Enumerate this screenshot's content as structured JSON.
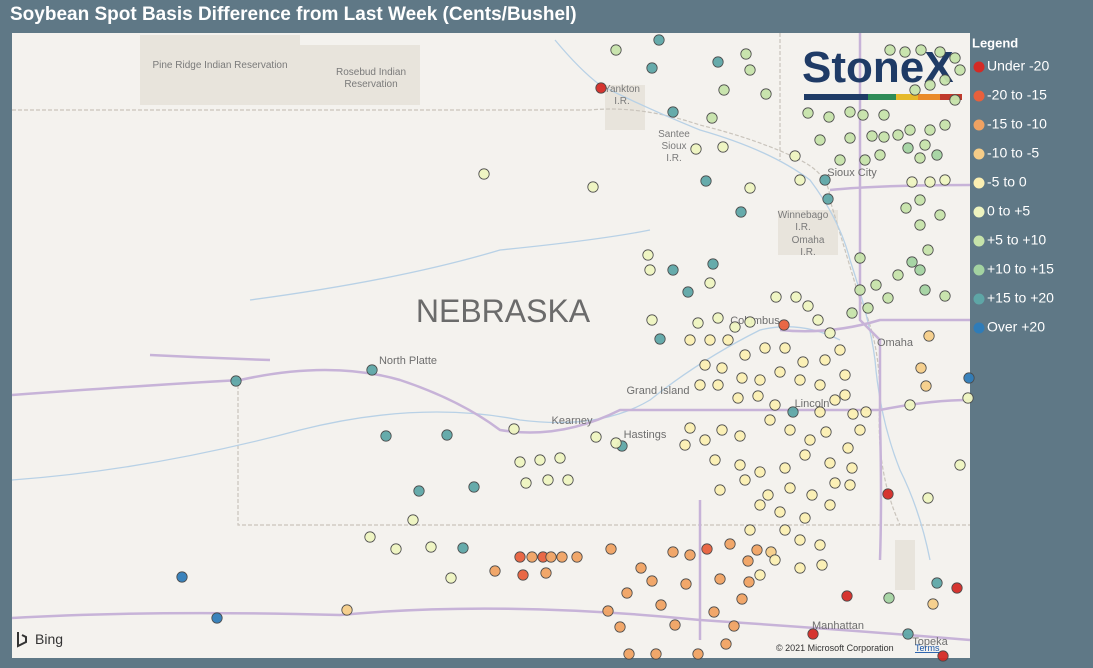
{
  "title": "Soybean Spot Basis Difference from Last Week (Cents/Bushel)",
  "legend": {
    "title": "Legend",
    "items": [
      {
        "label": "Under -20",
        "color": "#d42a25"
      },
      {
        "label": "-20 to -15",
        "color": "#e8603c"
      },
      {
        "label": "-15 to -10",
        "color": "#f0a262"
      },
      {
        "label": "-10 to -5",
        "color": "#f6cd88"
      },
      {
        "label": "-5 to 0",
        "color": "#fbefb2"
      },
      {
        "label": "0 to +5",
        "color": "#eef4c0"
      },
      {
        "label": "+5 to +10",
        "color": "#c6e3aa"
      },
      {
        "label": "+10 to +15",
        "color": "#a3d3a1"
      },
      {
        "label": "+15 to +20",
        "color": "#5ea6a6"
      },
      {
        "label": "Over +20",
        "color": "#2f7cb8"
      }
    ]
  },
  "logo": "StoneX",
  "map_labels": {
    "pine_ridge": "Pine Ridge Indian Reservation",
    "rosebud": [
      "Rosebud Indian",
      "Reservation"
    ],
    "yankton": [
      "Yankton",
      "I.R."
    ],
    "santee": [
      "Santee",
      "Sioux",
      "I.R."
    ],
    "sioux_city": "Sioux City",
    "winnebago": [
      "Winnebago",
      "I.R."
    ],
    "omaha_ir": [
      "Omaha",
      "I.R."
    ],
    "state": "NEBRASKA",
    "columbus": "Columbus",
    "omaha": "Omaha",
    "north_platte": "North Platte",
    "grand_island": "Grand Island",
    "kearney": "Kearney",
    "hastings": "Hastings",
    "lincoln": "Lincoln",
    "manhattan": "Manhattan",
    "topeka": "Topeka"
  },
  "attribution": {
    "provider": "Bing",
    "copyright": "© 2021 Microsoft Corporation",
    "terms": "Terms"
  }
}
